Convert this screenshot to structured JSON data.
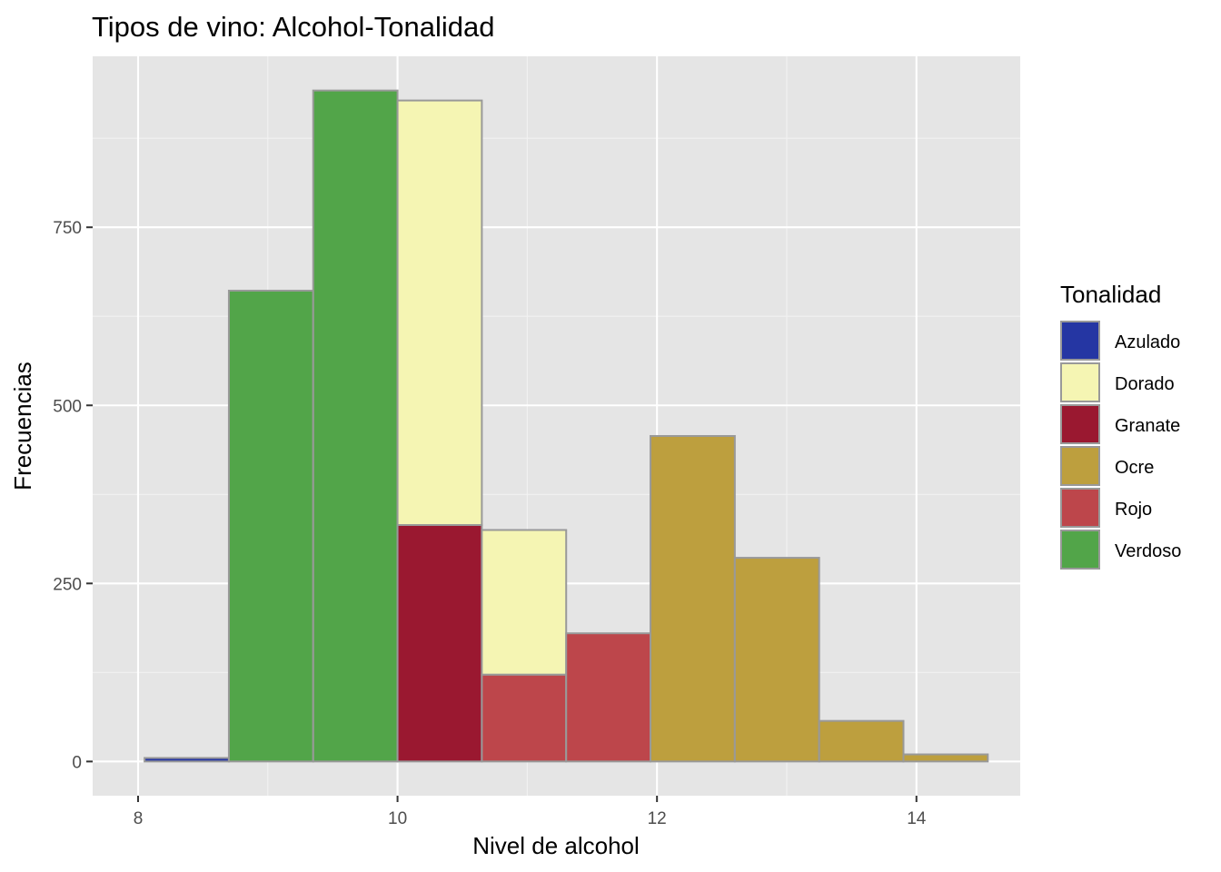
{
  "chart_data": {
    "type": "bar",
    "subtype": "stacked-histogram",
    "title": "Tipos de vino: Alcohol-Tonalidad",
    "xlabel": "Nivel de alcohol",
    "ylabel": "Frecuencias",
    "xlim": [
      7.65,
      14.8
    ],
    "ylim": [
      -48,
      990
    ],
    "x_ticks": [
      8,
      10,
      12,
      14
    ],
    "y_ticks": [
      0,
      250,
      500,
      750
    ],
    "x_tick_labels": [
      "8",
      "10",
      "12",
      "14"
    ],
    "y_tick_labels": [
      "0",
      "250",
      "500",
      "750"
    ],
    "grid": true,
    "legend": {
      "title": "Tonalidad",
      "position": "right",
      "entries": [
        {
          "name": "Azulado",
          "color": "#2536a3"
        },
        {
          "name": "Dorado",
          "color": "#f5f5b3"
        },
        {
          "name": "Granate",
          "color": "#9a1830"
        },
        {
          "name": "Ocre",
          "color": "#bd9f3e"
        },
        {
          "name": "Rojo",
          "color": "#bd464b"
        },
        {
          "name": "Verdoso",
          "color": "#52a549"
        }
      ]
    },
    "bar_outline_color": "#999999",
    "bins": [
      {
        "x0": 8.05,
        "x1": 8.7,
        "segments": [
          {
            "series": "Azulado",
            "value": 5
          }
        ]
      },
      {
        "x0": 8.7,
        "x1": 9.35,
        "segments": [
          {
            "series": "Verdoso",
            "value": 661
          }
        ]
      },
      {
        "x0": 9.35,
        "x1": 10.0,
        "segments": [
          {
            "series": "Verdoso",
            "value": 942
          }
        ]
      },
      {
        "x0": 10.0,
        "x1": 10.65,
        "segments": [
          {
            "series": "Granate",
            "value": 332
          },
          {
            "series": "Dorado",
            "value": 596
          }
        ]
      },
      {
        "x0": 10.65,
        "x1": 11.3,
        "segments": [
          {
            "series": "Rojo",
            "value": 122
          },
          {
            "series": "Dorado",
            "value": 203
          }
        ]
      },
      {
        "x0": 11.3,
        "x1": 11.95,
        "segments": [
          {
            "series": "Rojo",
            "value": 180
          }
        ]
      },
      {
        "x0": 11.95,
        "x1": 12.6,
        "segments": [
          {
            "series": "Ocre",
            "value": 457
          }
        ]
      },
      {
        "x0": 12.6,
        "x1": 13.25,
        "segments": [
          {
            "series": "Ocre",
            "value": 286
          }
        ]
      },
      {
        "x0": 13.25,
        "x1": 13.9,
        "segments": [
          {
            "series": "Ocre",
            "value": 57
          }
        ]
      },
      {
        "x0": 13.9,
        "x1": 14.55,
        "segments": [
          {
            "series": "Ocre",
            "value": 10
          }
        ]
      }
    ]
  }
}
